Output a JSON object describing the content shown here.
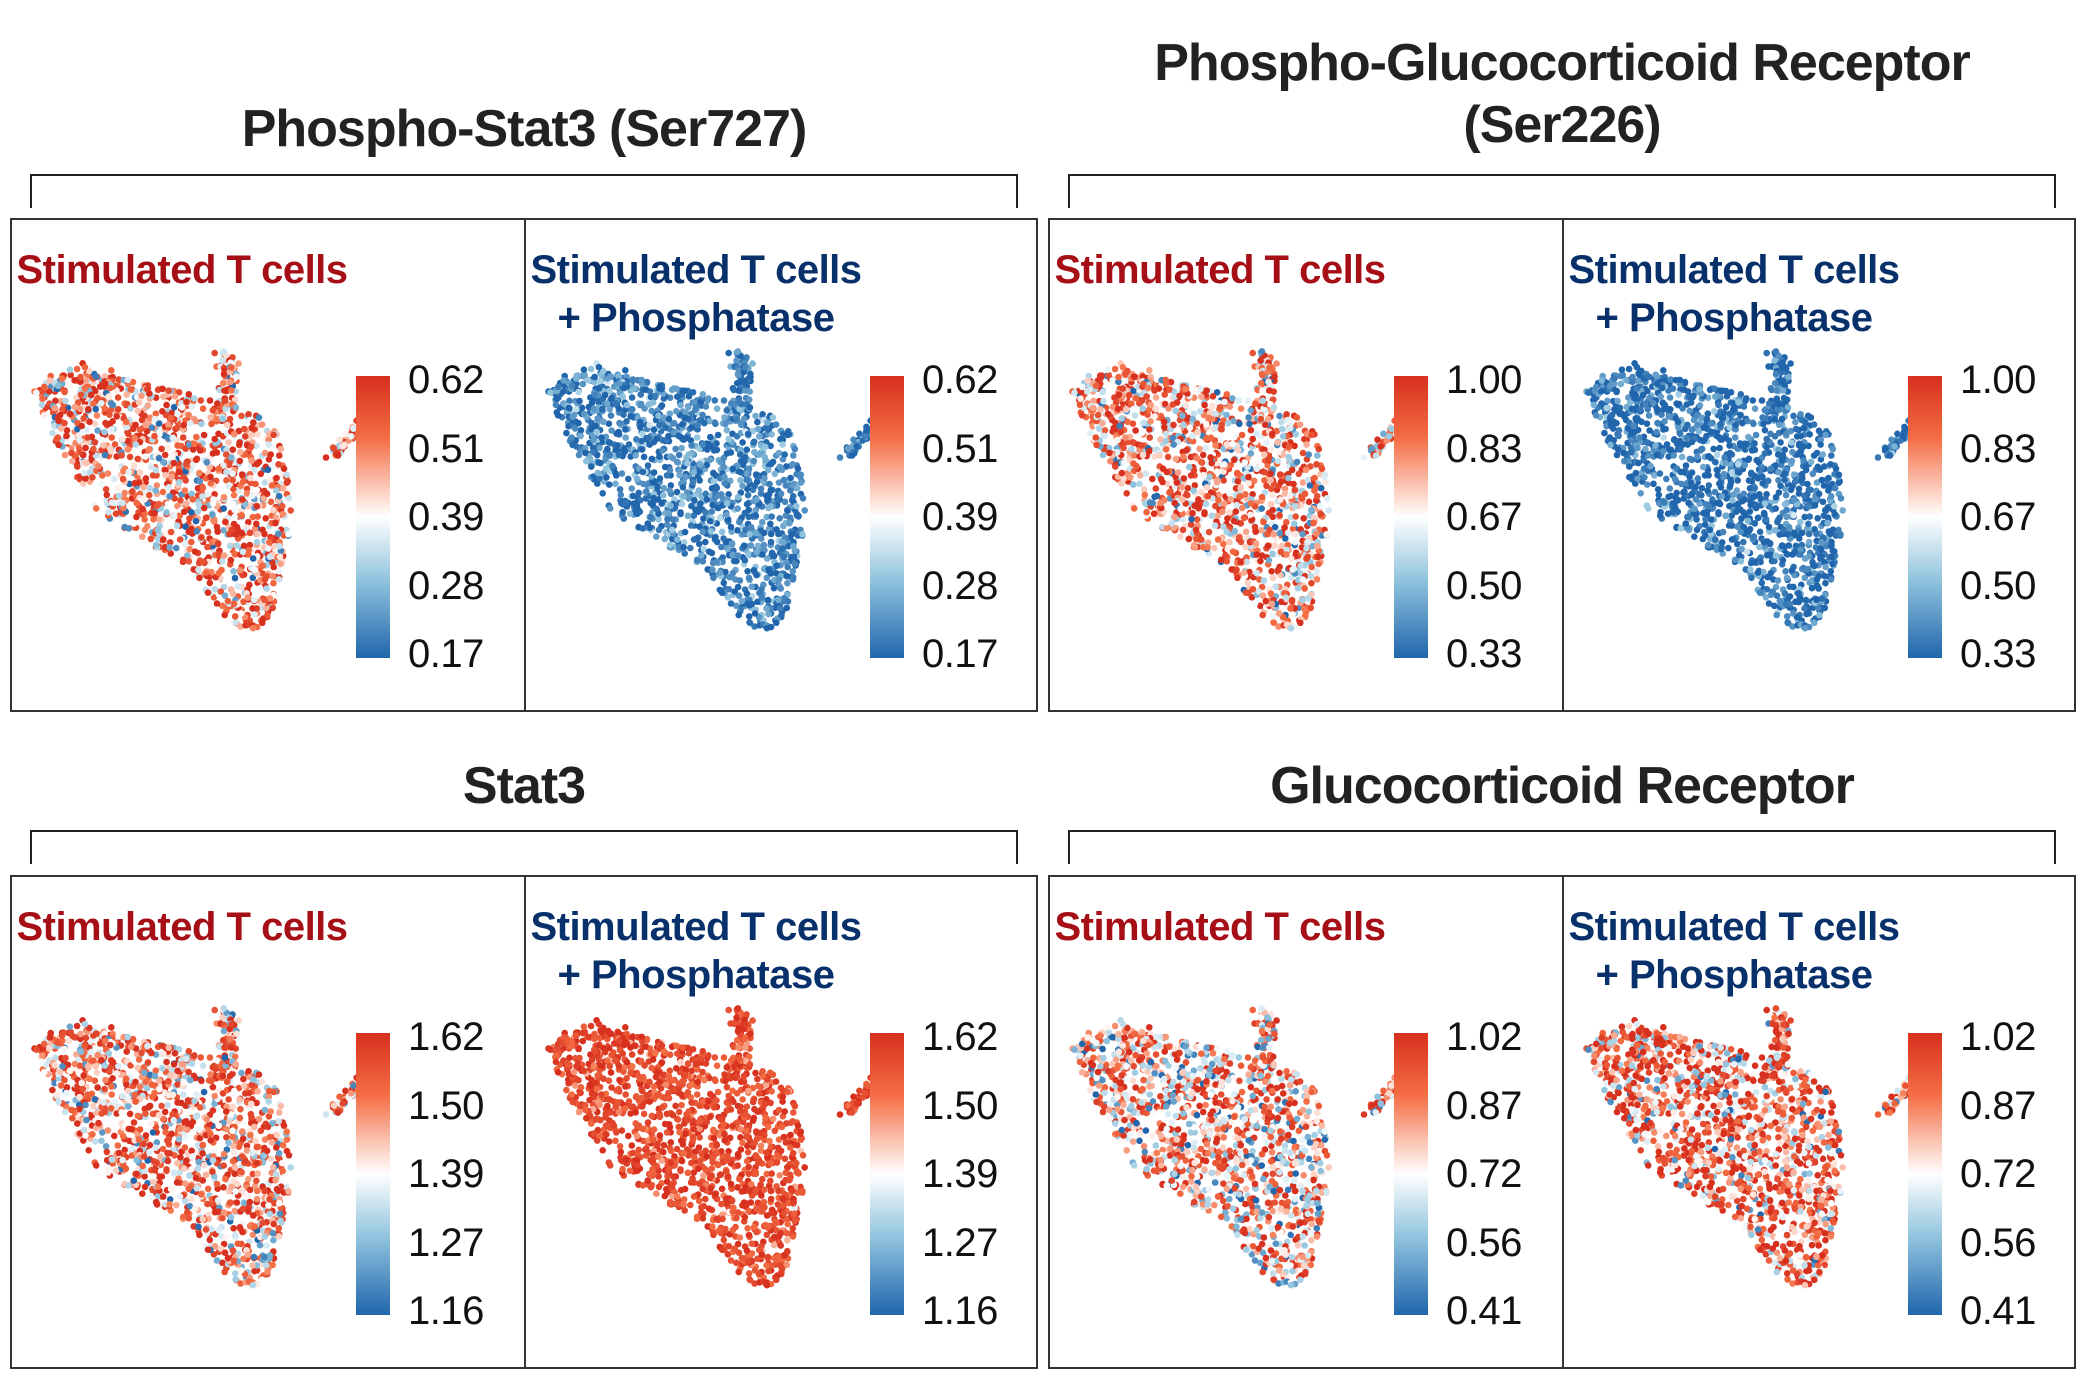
{
  "colors": {
    "red_title": "#a50f15",
    "blue_title": "#08306b",
    "low": "#2166ac",
    "mid": "#ffffff",
    "high": "#d7301f"
  },
  "chart_data": [
    {
      "type": "scatter",
      "title_lines": [
        "Phospho-Stat3 (Ser727)"
      ],
      "panels": [
        {
          "title_lines": [
            "Stimulated T cells",
            ""
          ],
          "title_color": "red",
          "mean_level": 0.72,
          "colorbar": {
            "ticks": [
              "0.62",
              "0.51",
              "0.39",
              "0.28",
              "0.17"
            ],
            "min": 0.17,
            "max": 0.62
          }
        },
        {
          "title_lines": [
            "Stimulated T cells",
            "+ Phosphatase"
          ],
          "title_color": "blue",
          "mean_level": 0.06,
          "colorbar": {
            "ticks": [
              "0.62",
              "0.51",
              "0.39",
              "0.28",
              "0.17"
            ],
            "min": 0.17,
            "max": 0.62
          }
        }
      ]
    },
    {
      "type": "scatter",
      "title_lines": [
        "Phospho-Glucocorticoid Receptor",
        "(Ser226)"
      ],
      "panels": [
        {
          "title_lines": [
            "Stimulated T cells",
            ""
          ],
          "title_color": "red",
          "mean_level": 0.68,
          "colorbar": {
            "ticks": [
              "1.00",
              "0.83",
              "0.67",
              "0.50",
              "0.33"
            ],
            "min": 0.33,
            "max": 1.0
          }
        },
        {
          "title_lines": [
            "Stimulated T cells",
            "+ Phosphatase"
          ],
          "title_color": "blue",
          "mean_level": 0.02,
          "colorbar": {
            "ticks": [
              "1.00",
              "0.83",
              "0.67",
              "0.50",
              "0.33"
            ],
            "min": 0.33,
            "max": 1.0
          }
        }
      ]
    },
    {
      "type": "scatter",
      "title_lines": [
        "Stat3"
      ],
      "panels": [
        {
          "title_lines": [
            "Stimulated T cells",
            ""
          ],
          "title_color": "red",
          "mean_level": 0.7,
          "colorbar": {
            "ticks": [
              "1.62",
              "1.50",
              "1.39",
              "1.27",
              "1.16"
            ],
            "min": 1.16,
            "max": 1.62
          }
        },
        {
          "title_lines": [
            "Stimulated T cells",
            "+ Phosphatase"
          ],
          "title_color": "blue",
          "mean_level": 0.88,
          "colorbar": {
            "ticks": [
              "1.62",
              "1.50",
              "1.39",
              "1.27",
              "1.16"
            ],
            "min": 1.16,
            "max": 1.62
          }
        }
      ]
    },
    {
      "type": "scatter",
      "title_lines": [
        "Glucocorticoid Receptor"
      ],
      "panels": [
        {
          "title_lines": [
            "Stimulated T cells",
            ""
          ],
          "title_color": "red",
          "mean_level": 0.64,
          "colorbar": {
            "ticks": [
              "1.02",
              "0.87",
              "0.72",
              "0.56",
              "0.41"
            ],
            "min": 0.41,
            "max": 1.02
          }
        },
        {
          "title_lines": [
            "Stimulated T cells",
            "+ Phosphatase"
          ],
          "title_color": "blue",
          "mean_level": 0.78,
          "colorbar": {
            "ticks": [
              "1.02",
              "0.87",
              "0.72",
              "0.56",
              "0.41"
            ],
            "min": 0.41,
            "max": 1.02
          }
        }
      ]
    }
  ]
}
